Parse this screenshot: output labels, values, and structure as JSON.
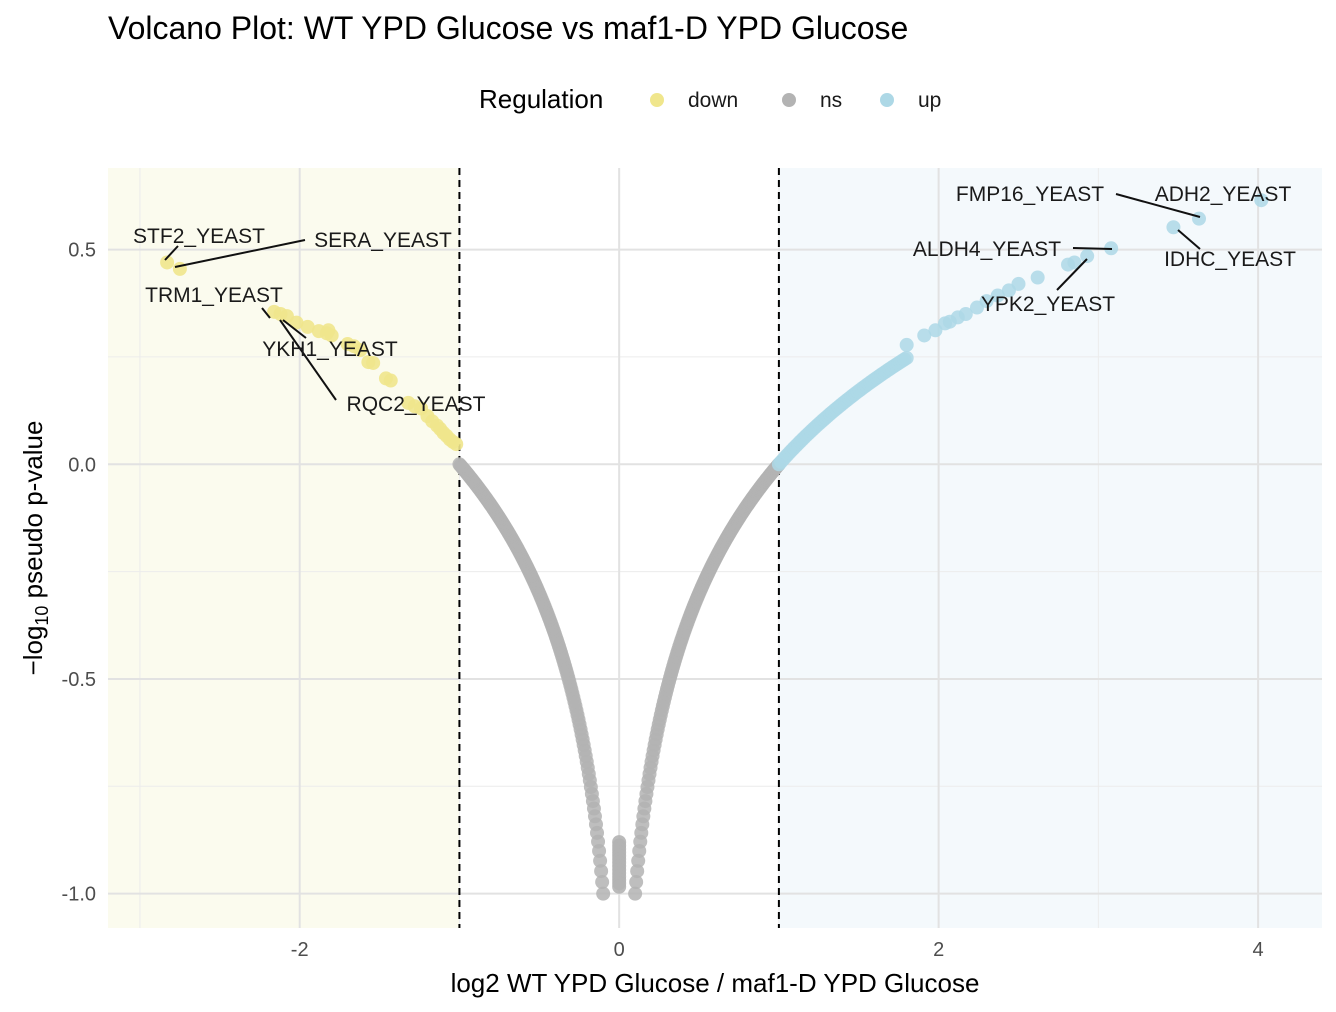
{
  "chart_data": {
    "type": "scatter",
    "title": "Volcano Plot: WT YPD Glucose vs maf1-D YPD Glucose",
    "xlabel": "log2 WT YPD Glucose / maf1-D YPD Glucose",
    "ylabel_prefix": "−log",
    "ylabel_sub": "10",
    "ylabel_suffix": " pseudo p-value",
    "xlim": [
      -3.2,
      4.4
    ],
    "ylim": [
      -1.08,
      0.69
    ],
    "x_ticks": [
      -2,
      0,
      2,
      4
    ],
    "x_tick_labels": [
      "-2",
      "0",
      "2",
      "4"
    ],
    "y_ticks": [
      -1.0,
      -0.5,
      0.0,
      0.5
    ],
    "y_tick_labels": [
      "-1.0",
      "-0.5",
      "0.0",
      "0.5"
    ],
    "thresholds": [
      -1,
      1
    ],
    "grid": true,
    "legend": {
      "title": "Regulation",
      "position": "top",
      "entries": [
        {
          "label": "down",
          "color": "#f0e68c"
        },
        {
          "label": "ns",
          "color": "#b3b3b3"
        },
        {
          "label": "up",
          "color": "#add8e6"
        }
      ]
    },
    "region_colors": {
      "down": "#fbfbee",
      "up": "#f4f9fc"
    },
    "curve_model": "y = a*log10(|x|) with a=1.0 in ns region; sampled points follow this V-shaped curve",
    "down_points": [
      {
        "x": -2.83,
        "y": 0.47
      },
      {
        "x": -2.75,
        "y": 0.455
      },
      {
        "x": -2.16,
        "y": 0.355
      },
      {
        "x": -2.12,
        "y": 0.35
      },
      {
        "x": -2.08,
        "y": 0.345
      },
      {
        "x": -2.02,
        "y": 0.33
      },
      {
        "x": -1.95,
        "y": 0.32
      },
      {
        "x": -1.88,
        "y": 0.31
      },
      {
        "x": -1.83,
        "y": 0.305
      },
      {
        "x": -1.8,
        "y": 0.3
      },
      {
        "x": -1.82,
        "y": 0.312
      },
      {
        "x": -1.7,
        "y": 0.28
      },
      {
        "x": -1.66,
        "y": 0.275
      },
      {
        "x": -1.62,
        "y": 0.266
      },
      {
        "x": -1.57,
        "y": 0.238
      },
      {
        "x": -1.54,
        "y": 0.236
      },
      {
        "x": -1.46,
        "y": 0.2
      },
      {
        "x": -1.43,
        "y": 0.195
      },
      {
        "x": -1.32,
        "y": 0.143
      },
      {
        "x": -1.28,
        "y": 0.135
      },
      {
        "x": -1.24,
        "y": 0.13
      },
      {
        "x": -1.2,
        "y": 0.112
      },
      {
        "x": -1.17,
        "y": 0.1
      },
      {
        "x": -1.14,
        "y": 0.09
      },
      {
        "x": -1.12,
        "y": 0.082
      },
      {
        "x": -1.1,
        "y": 0.073
      },
      {
        "x": -1.08,
        "y": 0.066
      },
      {
        "x": -1.06,
        "y": 0.058
      },
      {
        "x": -1.04,
        "y": 0.052
      },
      {
        "x": -1.02,
        "y": 0.047
      }
    ],
    "up_points": [
      {
        "x": 4.02,
        "y": 0.615
      },
      {
        "x": 3.63,
        "y": 0.572
      },
      {
        "x": 3.47,
        "y": 0.552
      },
      {
        "x": 3.08,
        "y": 0.503
      },
      {
        "x": 2.93,
        "y": 0.485
      },
      {
        "x": 2.85,
        "y": 0.47
      },
      {
        "x": 2.81,
        "y": 0.465
      },
      {
        "x": 2.62,
        "y": 0.435
      },
      {
        "x": 2.5,
        "y": 0.42
      },
      {
        "x": 2.44,
        "y": 0.405
      },
      {
        "x": 2.37,
        "y": 0.393
      },
      {
        "x": 2.3,
        "y": 0.38
      },
      {
        "x": 2.24,
        "y": 0.365
      },
      {
        "x": 2.17,
        "y": 0.35
      },
      {
        "x": 2.12,
        "y": 0.342
      },
      {
        "x": 2.07,
        "y": 0.332
      },
      {
        "x": 2.04,
        "y": 0.328
      },
      {
        "x": 1.98,
        "y": 0.312
      },
      {
        "x": 1.91,
        "y": 0.3
      },
      {
        "x": 1.8,
        "y": 0.278
      }
    ],
    "labels": [
      {
        "text": "STF2_YEAST",
        "x": -2.83,
        "y": 0.47
      },
      {
        "text": "SERA_YEAST",
        "x": -2.75,
        "y": 0.455
      },
      {
        "text": "TRM1_YEAST",
        "x": -2.16,
        "y": 0.355
      },
      {
        "text": "YKH1_YEAST",
        "x": -2.02,
        "y": 0.33
      },
      {
        "text": "RQC2_YEAST",
        "x": -2.08,
        "y": 0.345
      },
      {
        "text": "FMP16_YEAST",
        "x": 3.63,
        "y": 0.572
      },
      {
        "text": "ADH2_YEAST",
        "x": 4.02,
        "y": 0.615
      },
      {
        "text": "ALDH4_YEAST",
        "x": 3.08,
        "y": 0.503
      },
      {
        "text": "IDHC_YEAST",
        "x": 3.47,
        "y": 0.552
      },
      {
        "text": "YPK2_YEAST",
        "x": 2.93,
        "y": 0.485
      }
    ]
  }
}
